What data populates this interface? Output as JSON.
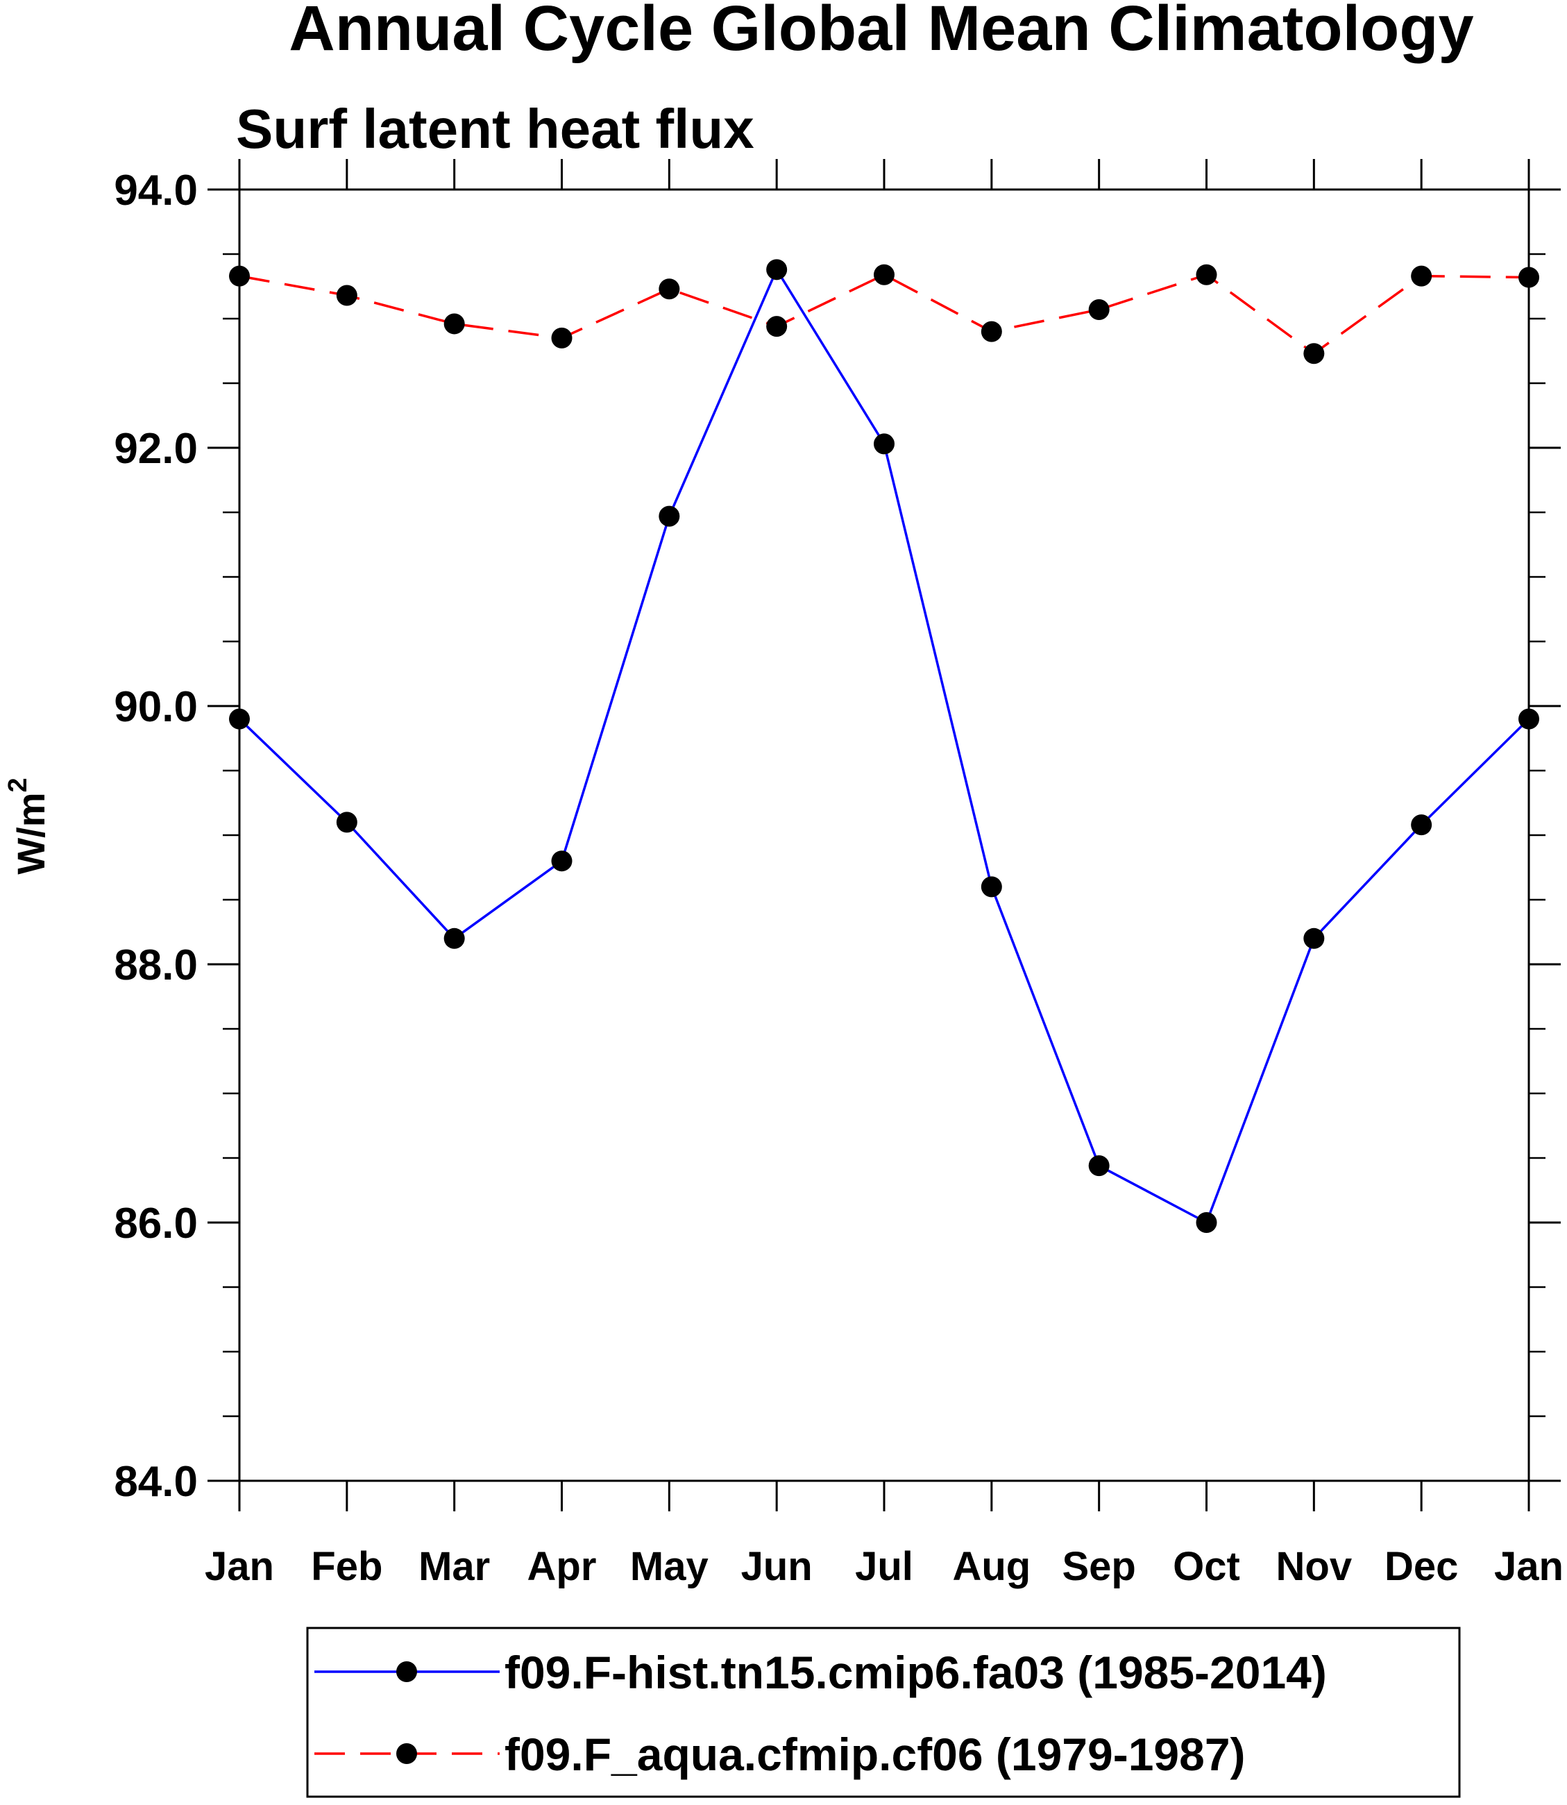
{
  "chart_data": {
    "type": "line",
    "title": "Annual Cycle Global Mean Climatology",
    "subtitle": "Surf latent heat flux",
    "ylabel": "W/m",
    "ylabel_superscript": "2",
    "xlabel": "",
    "categories": [
      "Jan",
      "Feb",
      "Mar",
      "Apr",
      "May",
      "Jun",
      "Jul",
      "Aug",
      "Sep",
      "Oct",
      "Nov",
      "Dec",
      "Jan"
    ],
    "ylim": [
      84.0,
      94.0
    ],
    "yticks": [
      "84.0",
      "86.0",
      "88.0",
      "90.0",
      "92.0",
      "94.0"
    ],
    "ytick_values": [
      84,
      86,
      88,
      90,
      92,
      94
    ],
    "yminor_step": 0.5,
    "grid": false,
    "legend_position": "bottom",
    "series": [
      {
        "name": "f09.F-hist.tn15.cmip6.fa03 (1985-2014)",
        "color": "#0000ff",
        "dash": "solid",
        "values": [
          89.9,
          89.1,
          88.2,
          88.8,
          91.47,
          93.38,
          92.03,
          88.6,
          86.44,
          86.0,
          88.2,
          89.08,
          89.9
        ]
      },
      {
        "name": "f09.F_aqua.cfmip.cf06 (1979-1987)",
        "color": "#ff0000",
        "dash": "dashed",
        "values": [
          93.33,
          93.18,
          92.96,
          92.85,
          93.23,
          92.94,
          93.34,
          92.9,
          93.07,
          93.34,
          92.73,
          93.33,
          93.32
        ]
      }
    ]
  }
}
